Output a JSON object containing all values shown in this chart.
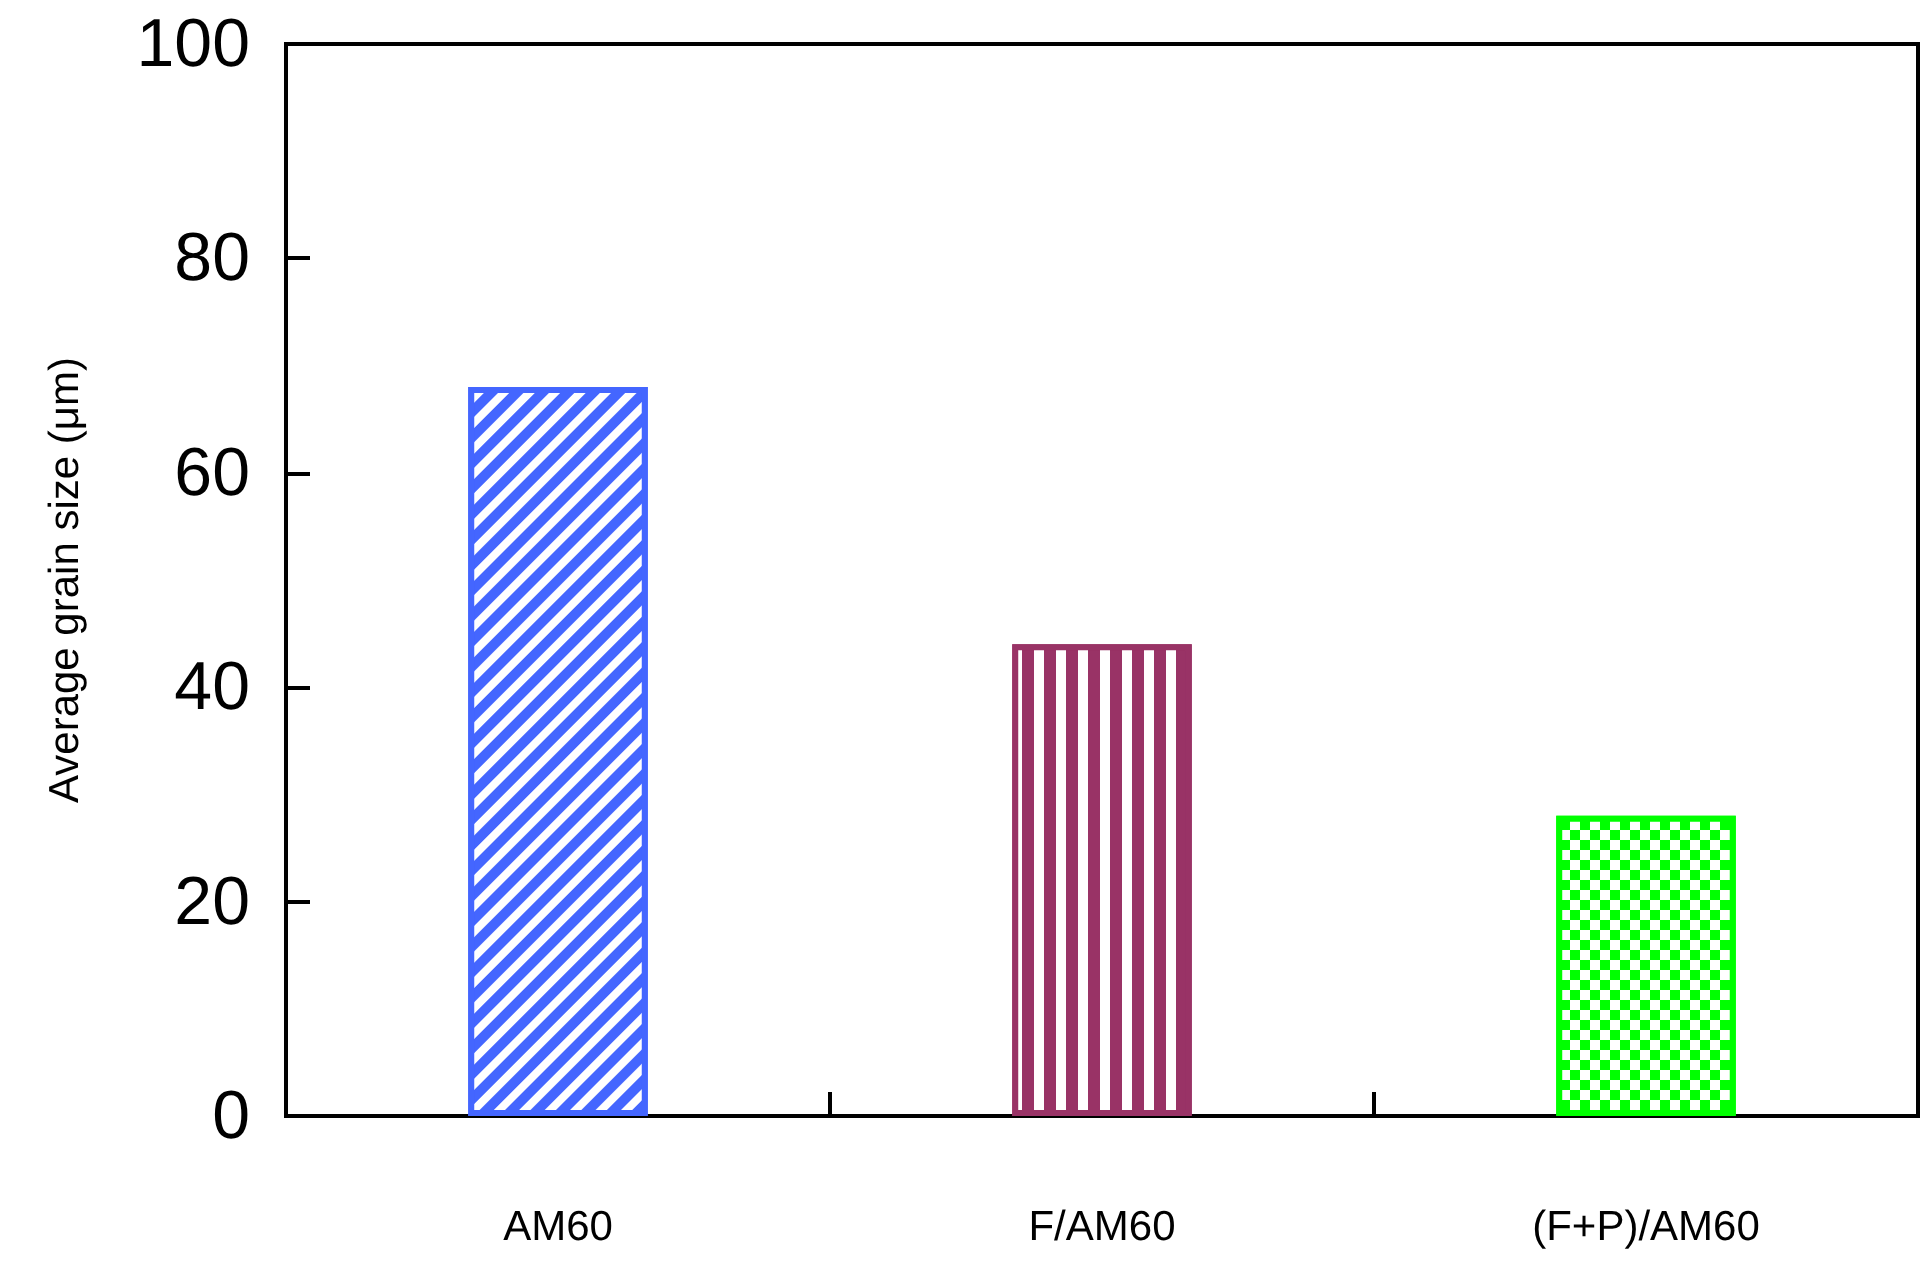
{
  "chart_data": {
    "type": "bar",
    "ylabel": "Average grain size (μm)",
    "categories": [
      "AM60",
      "F/AM60",
      "(F+P)/AM60"
    ],
    "values": [
      68,
      44,
      28
    ],
    "colors": [
      "#4466ff",
      "#993366",
      "#00ff00"
    ],
    "ylim": [
      0,
      100
    ],
    "yticks": [
      0,
      20,
      40,
      60,
      80,
      100
    ],
    "grid": false
  }
}
